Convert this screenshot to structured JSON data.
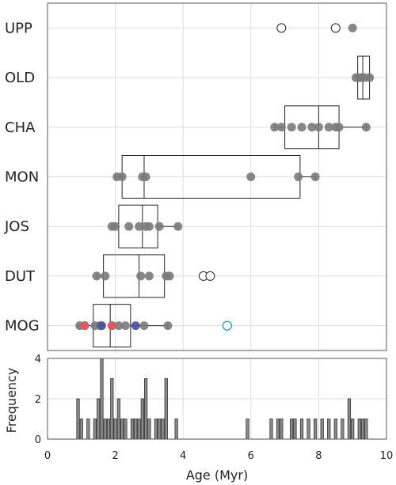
{
  "chart_data": [
    {
      "type": "scatter",
      "subtype": "box-and-strip",
      "categories": [
        "UPP",
        "OLD",
        "CHA",
        "MON",
        "JOS",
        "DUT",
        "MOG"
      ],
      "xlim": [
        0,
        10
      ],
      "grid": true,
      "colors": {
        "point": "#7a7a7a",
        "outlier_stroke": "#222222",
        "red": "#e05a5e",
        "blue": "#4a4f9e",
        "cyan": "#2a9fd8"
      },
      "groups": [
        {
          "label": "UPP",
          "box": null,
          "points": [
            9.0
          ],
          "outliers": [
            6.9,
            8.5
          ]
        },
        {
          "label": "OLD",
          "box": {
            "q1": 9.15,
            "median": 9.3,
            "q3": 9.5,
            "min": 9.1,
            "max": 9.5
          },
          "points": [
            9.1,
            9.2,
            9.25,
            9.35,
            9.5
          ],
          "outliers": []
        },
        {
          "label": "CHA",
          "box": {
            "q1": 7.0,
            "median": 8.0,
            "q3": 8.6,
            "min": 6.7,
            "max": 9.4
          },
          "points": [
            6.7,
            6.9,
            7.2,
            7.5,
            7.8,
            8.0,
            8.3,
            8.5,
            8.6,
            9.4
          ],
          "outliers": []
        },
        {
          "label": "MON",
          "box": {
            "q1": 2.2,
            "median": 2.85,
            "q3": 7.45,
            "min": 2.0,
            "max": 7.9
          },
          "points": [
            2.05,
            2.2,
            2.8,
            2.9,
            6.0,
            7.4,
            7.9
          ],
          "outliers": []
        },
        {
          "label": "JOS",
          "box": {
            "q1": 2.1,
            "median": 2.8,
            "q3": 3.25,
            "min": 1.9,
            "max": 3.85
          },
          "points": [
            1.9,
            2.0,
            2.4,
            2.7,
            2.9,
            3.0,
            3.3,
            3.85
          ],
          "outliers": []
        },
        {
          "label": "DUT",
          "box": {
            "q1": 1.65,
            "median": 2.7,
            "q3": 3.45,
            "min": 1.45,
            "max": 3.6
          },
          "points": [
            1.45,
            1.7,
            2.75,
            3.0,
            3.5,
            3.6
          ],
          "outliers": [
            4.6,
            4.8
          ]
        },
        {
          "label": "MOG",
          "box": {
            "q1": 1.35,
            "median": 1.85,
            "q3": 2.45,
            "min": 0.9,
            "max": 3.55
          },
          "points": [
            0.95,
            1.1,
            1.4,
            1.55,
            1.9,
            2.1,
            2.3,
            2.85,
            3.55
          ],
          "colored_points": [
            {
              "x": 1.1,
              "color": "red"
            },
            {
              "x": 1.6,
              "color": "blue"
            },
            {
              "x": 1.9,
              "color": "red"
            },
            {
              "x": 2.6,
              "color": "blue"
            }
          ],
          "outliers": [],
          "open_markers": [
            {
              "x": 5.3,
              "color": "cyan"
            }
          ]
        }
      ]
    },
    {
      "type": "bar",
      "subtype": "histogram",
      "ylabel": "Frequency",
      "xlabel": "Age (Myr)",
      "xlim": [
        0,
        10
      ],
      "ylim": [
        0,
        4
      ],
      "xticks": [
        "0",
        "2",
        "4",
        "6",
        "8",
        "10"
      ],
      "yticks": [
        "0",
        "2",
        "4"
      ],
      "bin_width": 0.1,
      "bins": [
        {
          "x": 0.9,
          "count": 2
        },
        {
          "x": 1.0,
          "count": 1
        },
        {
          "x": 1.2,
          "count": 1
        },
        {
          "x": 1.4,
          "count": 1
        },
        {
          "x": 1.5,
          "count": 2
        },
        {
          "x": 1.6,
          "count": 4
        },
        {
          "x": 1.7,
          "count": 1
        },
        {
          "x": 1.8,
          "count": 1
        },
        {
          "x": 1.9,
          "count": 3
        },
        {
          "x": 2.0,
          "count": 1
        },
        {
          "x": 2.1,
          "count": 2
        },
        {
          "x": 2.2,
          "count": 1
        },
        {
          "x": 2.3,
          "count": 1
        },
        {
          "x": 2.5,
          "count": 1
        },
        {
          "x": 2.6,
          "count": 1
        },
        {
          "x": 2.7,
          "count": 1
        },
        {
          "x": 2.8,
          "count": 2
        },
        {
          "x": 2.9,
          "count": 3
        },
        {
          "x": 3.0,
          "count": 1
        },
        {
          "x": 3.2,
          "count": 1
        },
        {
          "x": 3.3,
          "count": 1
        },
        {
          "x": 3.4,
          "count": 1
        },
        {
          "x": 3.5,
          "count": 3
        },
        {
          "x": 3.8,
          "count": 1
        },
        {
          "x": 5.9,
          "count": 1
        },
        {
          "x": 6.6,
          "count": 1
        },
        {
          "x": 6.8,
          "count": 1
        },
        {
          "x": 6.9,
          "count": 1
        },
        {
          "x": 7.2,
          "count": 1
        },
        {
          "x": 7.3,
          "count": 1
        },
        {
          "x": 7.5,
          "count": 1
        },
        {
          "x": 7.7,
          "count": 1
        },
        {
          "x": 7.9,
          "count": 1
        },
        {
          "x": 8.1,
          "count": 1
        },
        {
          "x": 8.3,
          "count": 1
        },
        {
          "x": 8.5,
          "count": 1
        },
        {
          "x": 8.7,
          "count": 1
        },
        {
          "x": 8.9,
          "count": 2
        },
        {
          "x": 9.0,
          "count": 1
        },
        {
          "x": 9.2,
          "count": 1
        },
        {
          "x": 9.3,
          "count": 1
        },
        {
          "x": 9.4,
          "count": 1
        }
      ]
    }
  ]
}
